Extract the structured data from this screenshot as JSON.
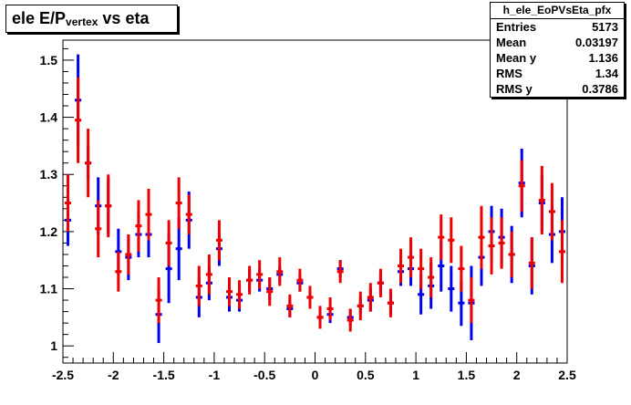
{
  "title": {
    "main": "ele E/P",
    "sub": "vertex",
    "tail": " vs eta"
  },
  "stats": {
    "name": "h_ele_EoPVsEta_pfx",
    "rows": [
      {
        "label": "Entries",
        "value": "5173"
      },
      {
        "label": "Mean",
        "value": "0.03197"
      },
      {
        "label": "Mean y",
        "value": "1.136"
      },
      {
        "label": "RMS",
        "value": "1.34"
      },
      {
        "label": "RMS y",
        "value": "0.3786"
      }
    ]
  },
  "colors": {
    "series_blue": "#0000ee",
    "series_red": "#ee0000",
    "axis": "#000000"
  },
  "chart_data": {
    "type": "scatter",
    "title": "ele E/Pvertex vs eta",
    "xlim": [
      -2.5,
      2.5
    ],
    "ylim": [
      0.97,
      1.535
    ],
    "x_ticks": [
      -2.5,
      -2,
      -1.5,
      -1,
      -0.5,
      0,
      0.5,
      1,
      1.5,
      2,
      2.5
    ],
    "x_tick_labels": [
      "-2.5",
      "-2",
      "-1.5",
      "-1",
      "-0.5",
      "0",
      "0.5",
      "1",
      "1.5",
      "2",
      "2.5"
    ],
    "y_ticks": [
      1.0,
      1.1,
      1.2,
      1.3,
      1.4,
      1.5
    ],
    "y_tick_labels": [
      "1",
      "1.1",
      "1.2",
      "1.3",
      "1.4",
      "1.5"
    ],
    "bin_width": 0.1,
    "series": [
      {
        "color": "blue",
        "x": [
          -2.45,
          -2.35,
          -2.25,
          -2.15,
          -2.05,
          -1.95,
          -1.85,
          -1.75,
          -1.65,
          -1.55,
          -1.45,
          -1.35,
          -1.25,
          -1.15,
          -1.05,
          -0.95,
          -0.85,
          -0.75,
          -0.65,
          -0.55,
          -0.45,
          -0.35,
          -0.25,
          -0.15,
          -0.05,
          0.05,
          0.15,
          0.25,
          0.35,
          0.45,
          0.55,
          0.65,
          0.75,
          0.85,
          0.95,
          1.05,
          1.15,
          1.25,
          1.35,
          1.45,
          1.55,
          1.65,
          1.75,
          1.85,
          1.95,
          2.05,
          2.15,
          2.25,
          2.35,
          2.45
        ],
        "y": [
          1.22,
          1.43,
          1.32,
          1.245,
          1.245,
          1.165,
          1.155,
          1.195,
          1.195,
          1.055,
          1.135,
          1.17,
          1.22,
          1.085,
          1.11,
          1.17,
          1.085,
          1.08,
          1.115,
          1.115,
          1.1,
          1.125,
          1.065,
          1.11,
          1.085,
          1.05,
          1.055,
          1.135,
          1.05,
          1.07,
          1.08,
          1.11,
          1.075,
          1.13,
          1.135,
          1.09,
          1.105,
          1.14,
          1.1,
          1.075,
          1.075,
          1.155,
          1.2,
          1.19,
          1.16,
          1.285,
          1.14,
          1.25,
          1.195,
          1.2
        ],
        "yerr": [
          0.045,
          0.08,
          0.03,
          0.05,
          0.05,
          0.04,
          0.04,
          0.04,
          0.04,
          0.05,
          0.06,
          0.055,
          0.05,
          0.035,
          0.03,
          0.03,
          0.025,
          0.02,
          0.02,
          0.02,
          0.02,
          0.015,
          0.015,
          0.015,
          0.015,
          0.015,
          0.015,
          0.015,
          0.015,
          0.015,
          0.02,
          0.02,
          0.02,
          0.025,
          0.03,
          0.035,
          0.04,
          0.045,
          0.04,
          0.04,
          0.065,
          0.05,
          0.045,
          0.05,
          0.05,
          0.06,
          0.05,
          0.05,
          0.05,
          0.06
        ]
      },
      {
        "color": "red",
        "x": [
          -2.45,
          -2.35,
          -2.25,
          -2.15,
          -2.05,
          -1.95,
          -1.85,
          -1.75,
          -1.65,
          -1.55,
          -1.45,
          -1.35,
          -1.25,
          -1.15,
          -1.05,
          -0.95,
          -0.85,
          -0.75,
          -0.65,
          -0.55,
          -0.45,
          -0.35,
          -0.25,
          -0.15,
          -0.05,
          0.05,
          0.15,
          0.25,
          0.35,
          0.45,
          0.55,
          0.65,
          0.75,
          0.85,
          0.95,
          1.05,
          1.15,
          1.25,
          1.35,
          1.45,
          1.55,
          1.65,
          1.75,
          1.85,
          1.95,
          2.05,
          2.15,
          2.25,
          2.35,
          2.45
        ],
        "y": [
          1.25,
          1.395,
          1.32,
          1.205,
          1.245,
          1.13,
          1.16,
          1.21,
          1.23,
          1.08,
          1.18,
          1.25,
          1.23,
          1.105,
          1.125,
          1.185,
          1.095,
          1.09,
          1.115,
          1.125,
          1.095,
          1.13,
          1.07,
          1.115,
          1.085,
          1.05,
          1.065,
          1.13,
          1.045,
          1.07,
          1.085,
          1.11,
          1.075,
          1.14,
          1.155,
          1.135,
          1.12,
          1.19,
          1.185,
          1.135,
          1.08,
          1.19,
          1.175,
          1.18,
          1.16,
          1.28,
          1.145,
          1.255,
          1.235,
          1.165
        ],
        "yerr": [
          0.05,
          0.075,
          0.06,
          0.05,
          0.055,
          0.035,
          0.035,
          0.045,
          0.045,
          0.04,
          0.04,
          0.045,
          0.035,
          0.035,
          0.035,
          0.035,
          0.025,
          0.025,
          0.025,
          0.025,
          0.025,
          0.025,
          0.02,
          0.02,
          0.02,
          0.02,
          0.02,
          0.02,
          0.02,
          0.025,
          0.025,
          0.025,
          0.025,
          0.03,
          0.035,
          0.035,
          0.035,
          0.04,
          0.04,
          0.04,
          0.04,
          0.055,
          0.05,
          0.045,
          0.04,
          0.045,
          0.045,
          0.06,
          0.05,
          0.055
        ]
      }
    ]
  }
}
